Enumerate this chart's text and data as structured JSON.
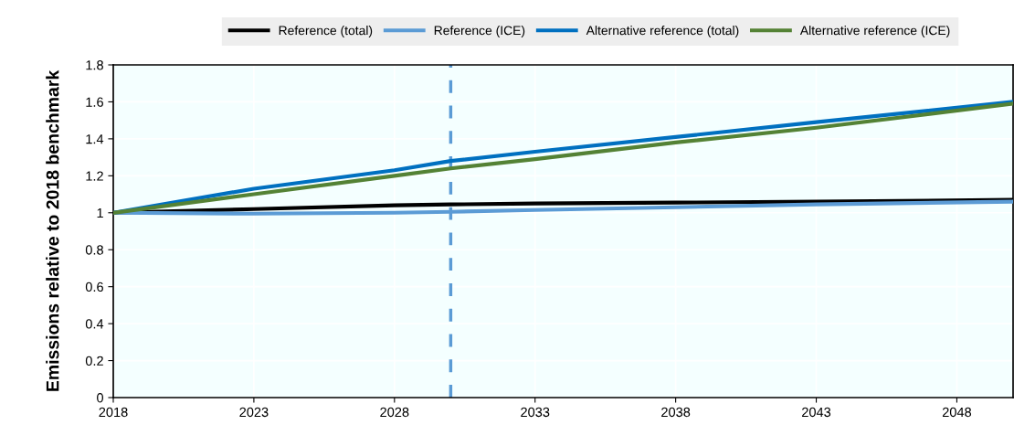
{
  "chart_data": {
    "type": "line",
    "ylabel": "Emissions relative to 2018 benchmark",
    "x": [
      2018,
      2023,
      2028,
      2030,
      2033,
      2038,
      2043,
      2050
    ],
    "series": [
      {
        "name": "Reference (total)",
        "color": "#000000",
        "values": [
          1.0,
          1.02,
          1.04,
          1.045,
          1.05,
          1.055,
          1.06,
          1.07
        ]
      },
      {
        "name": "Reference (ICE)",
        "color": "#5b9bd5",
        "values": [
          1.0,
          0.995,
          1.0,
          1.005,
          1.015,
          1.03,
          1.045,
          1.06
        ]
      },
      {
        "name": "Alternative reference (total)",
        "color": "#0070c0",
        "values": [
          1.0,
          1.13,
          1.23,
          1.28,
          1.33,
          1.41,
          1.49,
          1.6
        ]
      },
      {
        "name": "Alternative reference (ICE)",
        "color": "#548235",
        "values": [
          1.0,
          1.1,
          1.2,
          1.24,
          1.29,
          1.38,
          1.46,
          1.59
        ]
      }
    ],
    "xlim": [
      2018,
      2050
    ],
    "xticks": [
      2018,
      2023,
      2028,
      2033,
      2038,
      2043,
      2048
    ],
    "ylim": [
      0,
      1.8
    ],
    "yticks": [
      0,
      {
        "value": 0.2,
        "label": "0.2"
      },
      {
        "value": 0.4,
        "label": "0.4"
      },
      {
        "value": 0.6,
        "label": "0.6"
      },
      {
        "value": 0.8,
        "label": "0.8"
      },
      1,
      {
        "value": 1.2,
        "label": "1.2"
      },
      {
        "value": 1.4,
        "label": "1.4"
      },
      {
        "value": 1.6,
        "label": "1.6"
      },
      {
        "value": 1.8,
        "label": "1.8"
      }
    ],
    "ref_lines": [
      {
        "axis": "x",
        "value": 2030,
        "color": "#5b9bd5",
        "line_style": "dashed"
      }
    ],
    "grid": true,
    "legend": "top",
    "marker": "none",
    "line_style": "solid"
  }
}
